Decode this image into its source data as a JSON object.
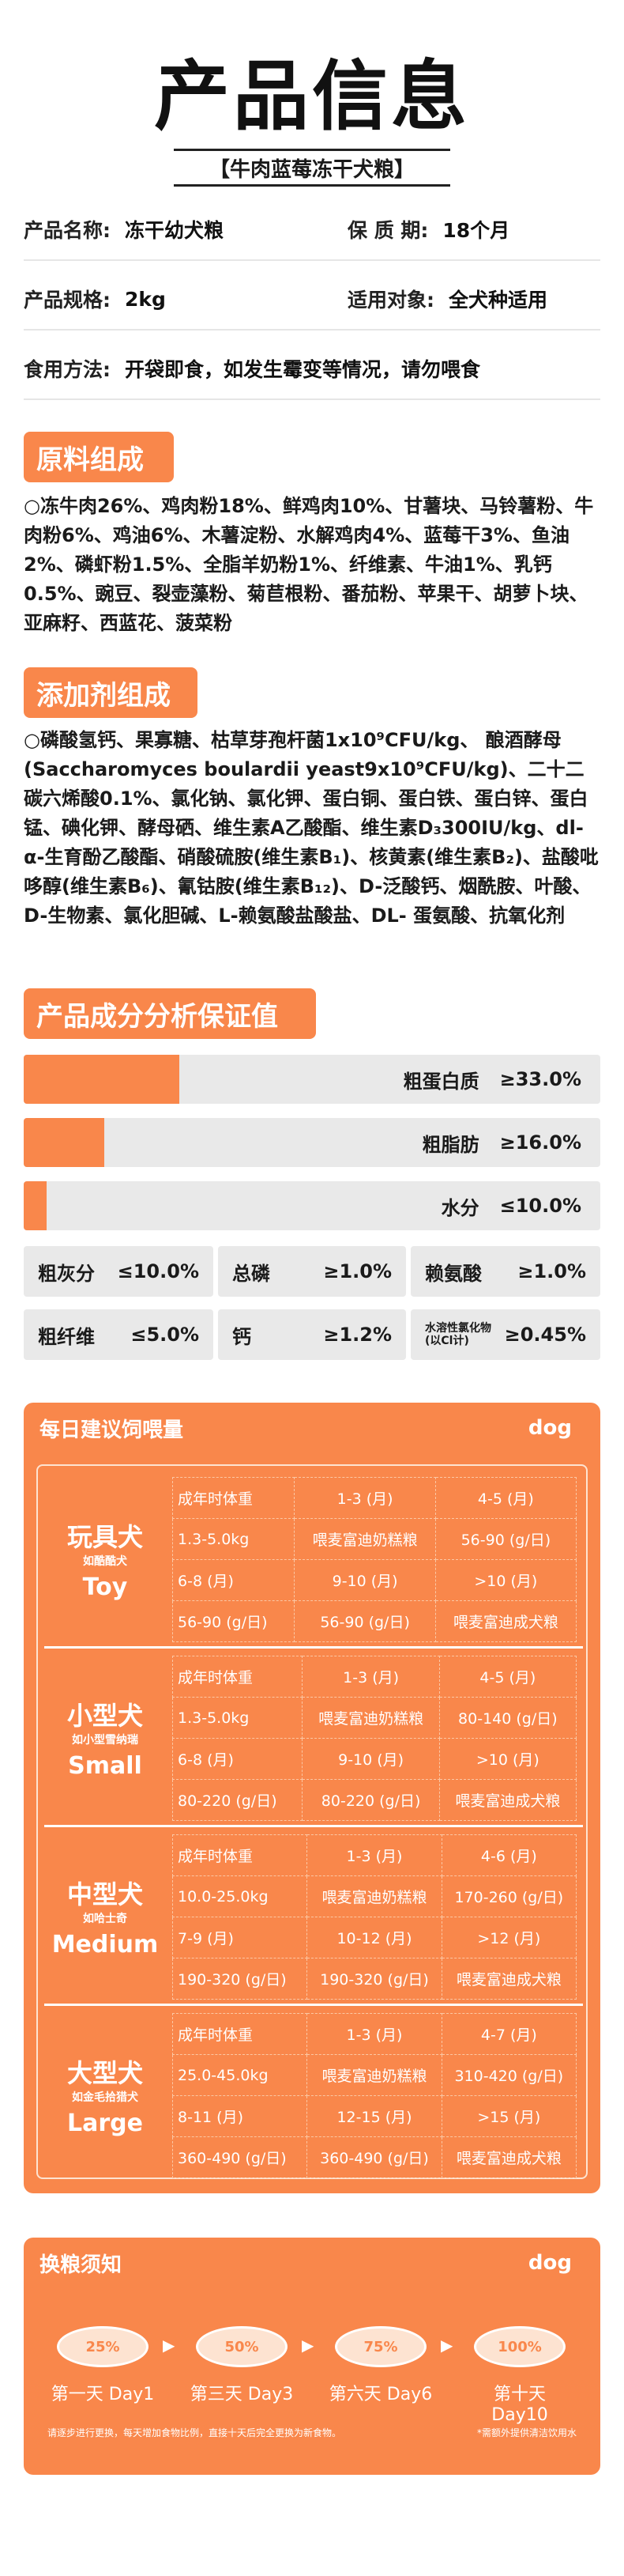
{
  "title": "产品信息",
  "subtitle": "【牛肉蓝莓冻干犬粮】",
  "info": [
    {
      "l1": "产品名称:",
      "v1": "冻干幼犬粮",
      "l2": "保 质 期:",
      "v2": "18个月"
    },
    {
      "l1": "产品规格:",
      "v1": "2kg",
      "l2": "适用对象:",
      "v2": "全犬种适用"
    },
    {
      "l1": "食用方法:",
      "v1": "开袋即食，如发生霉变等情况，请勿喂食"
    }
  ],
  "ingredients": {
    "heading": "原料组成",
    "text": "○冻牛肉26%、鸡肉粉18%、鲜鸡肉10%、甘薯块、马铃薯粉、牛肉粉6%、鸡油6%、木薯淀粉、水解鸡肉4%、蓝莓干3%、鱼油2%、磷虾粉1.5%、全脂羊奶粉1%、纤维素、牛油1%、乳钙0.5%、豌豆、裂壶藻粉、菊苣根粉、番茄粉、苹果干、胡萝卜块、亚麻籽、西蓝花、菠菜粉"
  },
  "additives": {
    "heading": "添加剂组成",
    "text": "○磷酸氢钙、果寡糖、枯草芽孢杆菌1x10⁹CFU/kg、 酿酒酵母(Saccharomyces boulardii yeast9x10⁹CFU/kg)、二十二碳六烯酸0.1%、氯化钠、氯化钾、蛋白铜、蛋白铁、蛋白锌、蛋白锰、碘化钾、酵母硒、维生素A乙酸酯、维生素D₃300IU/kg、dl-α-生育酚乙酸酯、硝酸硫胺(维生素B₁)、核黄素(维生素B₂)、盐酸吡哆醇(维生素B₆)、氰钴胺(维生素B₁₂)、D-泛酸钙、烟酰胺、叶酸、D-生物素、氯化胆碱、L-赖氨酸盐酸盐、DL- 蛋氨酸、抗氧化剂"
  },
  "analysis": {
    "heading": "产品成分分析保证值",
    "bars": [
      {
        "label": "粗蛋白质",
        "value": "≥33.0%",
        "fill": 0.27
      },
      {
        "label": "粗脂肪",
        "value": "≥16.0%",
        "fill": 0.14
      },
      {
        "label": "水分",
        "value": "≤10.0%",
        "fill": 0.04
      }
    ],
    "grid": [
      [
        {
          "l": "粗灰分",
          "v": "≤10.0%"
        },
        {
          "l": "总磷",
          "v": "≥1.0%"
        },
        {
          "l": "赖氨酸",
          "v": "≥1.0%"
        }
      ],
      [
        {
          "l": "粗纤维",
          "v": "≤5.0%"
        },
        {
          "l": "钙",
          "v": "≥1.2%"
        },
        {
          "l": "水溶性氯化物(以Cl计)",
          "v": "≥0.45%"
        }
      ]
    ]
  },
  "feeding": {
    "heading": "每日建议饲喂量",
    "tag": "dog",
    "groups": [
      {
        "cn": "玩具犬",
        "ex": "如酷酷犬",
        "en": "Toy",
        "rows": [
          [
            "成年时体重",
            "1-3 (月)",
            "4-5 (月)"
          ],
          [
            "1.3-5.0kg",
            "喂麦富迪奶糕粮",
            "56-90 (g/日)"
          ],
          [
            "6-8 (月)",
            "9-10 (月)",
            ">10 (月)"
          ],
          [
            "56-90 (g/日)",
            "56-90 (g/日)",
            "喂麦富迪成犬粮"
          ]
        ]
      },
      {
        "cn": "小型犬",
        "ex": "如小型雪纳瑞",
        "en": "Small",
        "rows": [
          [
            "成年时体重",
            "1-3 (月)",
            "4-5 (月)"
          ],
          [
            "1.3-5.0kg",
            "喂麦富迪奶糕粮",
            "80-140 (g/日)"
          ],
          [
            "6-8 (月)",
            "9-10 (月)",
            ">10 (月)"
          ],
          [
            "80-220 (g/日)",
            "80-220 (g/日)",
            "喂麦富迪成犬粮"
          ]
        ]
      },
      {
        "cn": "中型犬",
        "ex": "如哈士奇",
        "en": "Medium",
        "rows": [
          [
            "成年时体重",
            "1-3 (月)",
            "4-6 (月)"
          ],
          [
            "10.0-25.0kg",
            "喂麦富迪奶糕粮",
            "170-260 (g/日)"
          ],
          [
            "7-9 (月)",
            "10-12 (月)",
            ">12 (月)"
          ],
          [
            "190-320 (g/日)",
            "190-320 (g/日)",
            "喂麦富迪成犬粮"
          ]
        ]
      },
      {
        "cn": "大型犬",
        "ex": "如金毛拾猎犬",
        "en": "Large",
        "rows": [
          [
            "成年时体重",
            "1-3 (月)",
            "4-7 (月)"
          ],
          [
            "25.0-45.0kg",
            "喂麦富迪奶糕粮",
            "310-420 (g/日)"
          ],
          [
            "8-11 (月)",
            "12-15 (月)",
            ">15 (月)"
          ],
          [
            "360-490 (g/日)",
            "360-490 (g/日)",
            "喂麦富迪成犬粮"
          ]
        ]
      }
    ]
  },
  "switching": {
    "heading": "换粮须知",
    "tag": "dog",
    "steps": [
      {
        "pct": "25%",
        "label": "第一天 Day1"
      },
      {
        "pct": "50%",
        "label": "第三天 Day3"
      },
      {
        "pct": "75%",
        "label": "第六天 Day6"
      },
      {
        "pct": "100%",
        "label": "第十天 Day10"
      }
    ],
    "note_left": "请逐步进行更换，每天增加食物比例，直接十天后完全更换为新食物。",
    "note_right": "*需额外提供清洁饮用水"
  },
  "colors": {
    "accent": "#f9874b",
    "bar_bg": "#e9e9e9"
  }
}
